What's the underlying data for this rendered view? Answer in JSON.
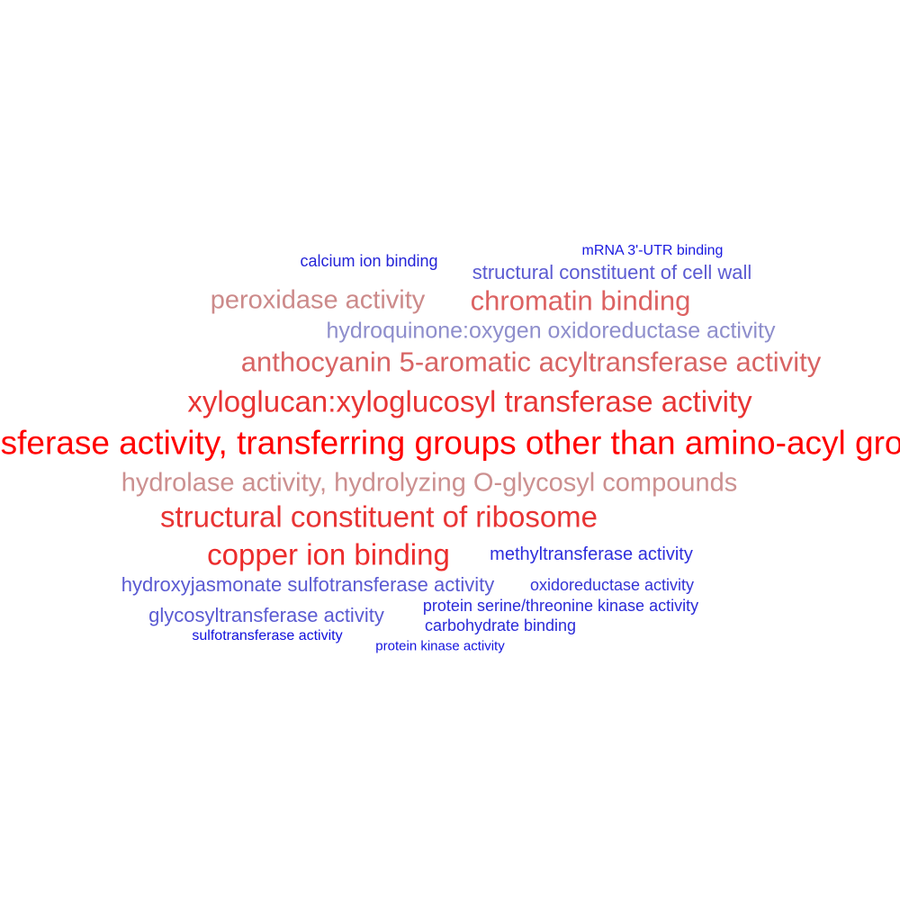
{
  "terms": [
    {
      "text": "mRNA 3'-UTR binding",
      "color": "#1a1ae0"
    },
    {
      "text": "calcium ion binding",
      "color": "#2424d8"
    },
    {
      "text": "structural constituent of cell wall",
      "color": "#5a5ad2"
    },
    {
      "text": "peroxidase activity",
      "color": "#cc8a8a"
    },
    {
      "text": "chromatin binding",
      "color": "#dc6262"
    },
    {
      "text": "hydroquinone:oxygen oxidoreductase activity",
      "color": "#8e8ecc"
    },
    {
      "text": "anthocyanin 5-aromatic acyltransferase activity",
      "color": "#d86464"
    },
    {
      "text": "xyloglucan:xyloglucosyl transferase activity",
      "color": "#e83434"
    },
    {
      "text": "transferase activity, transferring groups other than amino-acyl groups",
      "color": "#ff0000"
    },
    {
      "text": "hydrolase activity, hydrolyzing O-glycosyl compounds",
      "color": "#cc9090"
    },
    {
      "text": "structural constituent of ribosome",
      "color": "#e83434"
    },
    {
      "text": "copper ion binding",
      "color": "#ec2c2c"
    },
    {
      "text": "methyltransferase activity",
      "color": "#2e2edc"
    },
    {
      "text": "hydroxyjasmonate sulfotransferase activity",
      "color": "#5a5ad2"
    },
    {
      "text": "oxidoreductase activity",
      "color": "#3434d6"
    },
    {
      "text": "protein serine/threonine kinase activity",
      "color": "#2a2ad8"
    },
    {
      "text": "glycosyltransferase activity",
      "color": "#5a5ad2"
    },
    {
      "text": "carbohydrate binding",
      "color": "#2a2ad8"
    },
    {
      "text": "sulfotransferase activity",
      "color": "#1010dc"
    },
    {
      "text": "protein kinase activity",
      "color": "#1414de"
    }
  ]
}
